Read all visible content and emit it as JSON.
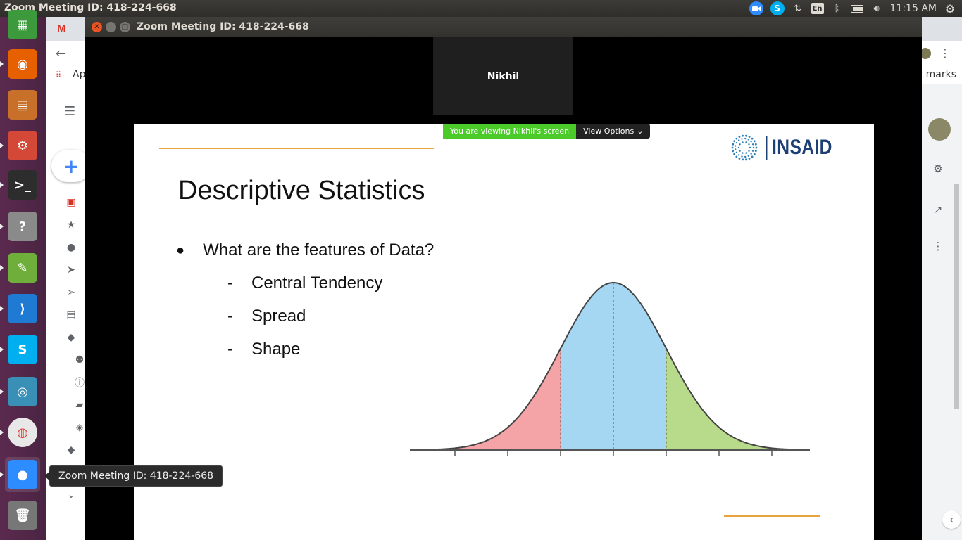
{
  "top_panel": {
    "window_title": "Zoom Meeting ID: 418-224-668",
    "keyboard_layout": "En",
    "clock": "11:15 AM"
  },
  "launcher": {
    "items": [
      {
        "name": "spreadsheet",
        "color": "#3c9a3c"
      },
      {
        "name": "firefox",
        "color": "#e66000"
      },
      {
        "name": "impress",
        "color": "#c8702a"
      },
      {
        "name": "settings",
        "color": "#d34836"
      },
      {
        "name": "terminal",
        "color": "#2d2d2d"
      },
      {
        "name": "help",
        "color": "#8a8a8a"
      },
      {
        "name": "gedit",
        "color": "#6fae3a"
      },
      {
        "name": "vscode",
        "color": "#1f7ad3"
      },
      {
        "name": "skype",
        "color": "#00aff0"
      },
      {
        "name": "anydesk",
        "color": "#3a8fb7"
      },
      {
        "name": "chrome",
        "color": "#e8e8e8"
      },
      {
        "name": "zoom",
        "color": "#2d8cff"
      },
      {
        "name": "trash",
        "color": "#777777"
      }
    ]
  },
  "chrome": {
    "gmail_tab_letter": "M",
    "apps_label": "Ap",
    "bookmarks_label": "marks"
  },
  "zoom": {
    "title": "Zoom Meeting ID: 418-224-668",
    "participant_name": "Nikhil",
    "viewing_label": "You are viewing Nikhil's screen",
    "view_options_label": "View Options",
    "view_options_chevron": "⌄"
  },
  "slide": {
    "title": "Descriptive Statistics",
    "bullet_symbol": "●",
    "bullet": "What are the features of Data?",
    "dash": "-",
    "sub_items": [
      "Central Tendency",
      "Spread",
      "Shape"
    ],
    "logo_text": "INSAID",
    "accent_color": "#e8a33c",
    "curve_colors": {
      "left": "#f4a3a6",
      "middle": "#a5d6f2",
      "right": "#b8da8b"
    }
  },
  "dock_tooltip": "Zoom Meeting ID: 418-224-668"
}
